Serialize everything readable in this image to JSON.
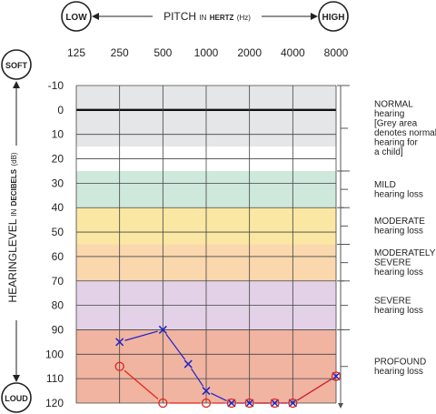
{
  "chart_data": {
    "type": "line",
    "header": {
      "low_label": "LOW",
      "high_label": "HIGH",
      "axis_title_pre": "PITCH",
      "axis_title_in": "IN",
      "axis_title_unit": "HERTZ",
      "axis_title_hz": "(Hz)"
    },
    "side": {
      "soft_label": "SOFT",
      "loud_label": "LOUD",
      "axis_title_a": "HEARINGLEVEL",
      "axis_title_in": "IN",
      "axis_title_b": "DECIBELS",
      "axis_title_db": "(dB)"
    },
    "x_ticks": [
      "125",
      "250",
      "500",
      "1000",
      "2000",
      "4000",
      "8000"
    ],
    "y_ticks": [
      "-10",
      "0",
      "10",
      "20",
      "30",
      "40",
      "50",
      "60",
      "70",
      "80",
      "90",
      "100",
      "110",
      "120"
    ],
    "ylim": [
      -10,
      120
    ],
    "bands": [
      {
        "from": -10,
        "to": 15,
        "color": "#e5e6e8"
      },
      {
        "from": 25,
        "to": 40,
        "color": "#cfe8dc"
      },
      {
        "from": 40,
        "to": 55,
        "color": "#fbe7a4"
      },
      {
        "from": 55,
        "to": 70,
        "color": "#fbd7ad"
      },
      {
        "from": 70,
        "to": 90,
        "color": "#e2d1e7"
      },
      {
        "from": 90,
        "to": 120,
        "color": "#f0b4a1"
      }
    ],
    "categories": [
      {
        "title": "NORMAL",
        "lines": [
          "hearing",
          "[Grey area",
          "denotes normal",
          "hearing for",
          "a child]"
        ],
        "from": -10,
        "to": 25
      },
      {
        "title": "MILD",
        "lines": [
          "hearing loss"
        ],
        "from": 25,
        "to": 40
      },
      {
        "title": "MODERATE",
        "lines": [
          "hearing loss"
        ],
        "from": 40,
        "to": 55
      },
      {
        "title": "MODERATELY",
        "lines": [
          "SEVERE",
          "hearing loss"
        ],
        "from": 55,
        "to": 70
      },
      {
        "title": "SEVERE",
        "lines": [
          "hearing loss"
        ],
        "from": 70,
        "to": 90
      },
      {
        "title": "PROFOUND",
        "lines": [
          "hearing loss"
        ],
        "from": 90,
        "to": 120
      }
    ],
    "series": [
      {
        "marker": "x",
        "color": "#1e22c8",
        "points": [
          [
            250,
            95
          ],
          [
            500,
            90
          ],
          [
            750,
            104
          ],
          [
            1000,
            115
          ],
          [
            1500,
            120
          ],
          [
            2000,
            120
          ],
          [
            3000,
            120
          ],
          [
            4000,
            120
          ],
          [
            8000,
            109
          ]
        ]
      },
      {
        "marker": "o",
        "color": "#e2231a",
        "points": [
          [
            250,
            105
          ],
          [
            500,
            120
          ],
          [
            1000,
            120
          ],
          [
            1500,
            120
          ],
          [
            2000,
            120
          ],
          [
            3000,
            120
          ],
          [
            4000,
            120
          ],
          [
            8000,
            109
          ]
        ]
      }
    ],
    "grid": true
  }
}
